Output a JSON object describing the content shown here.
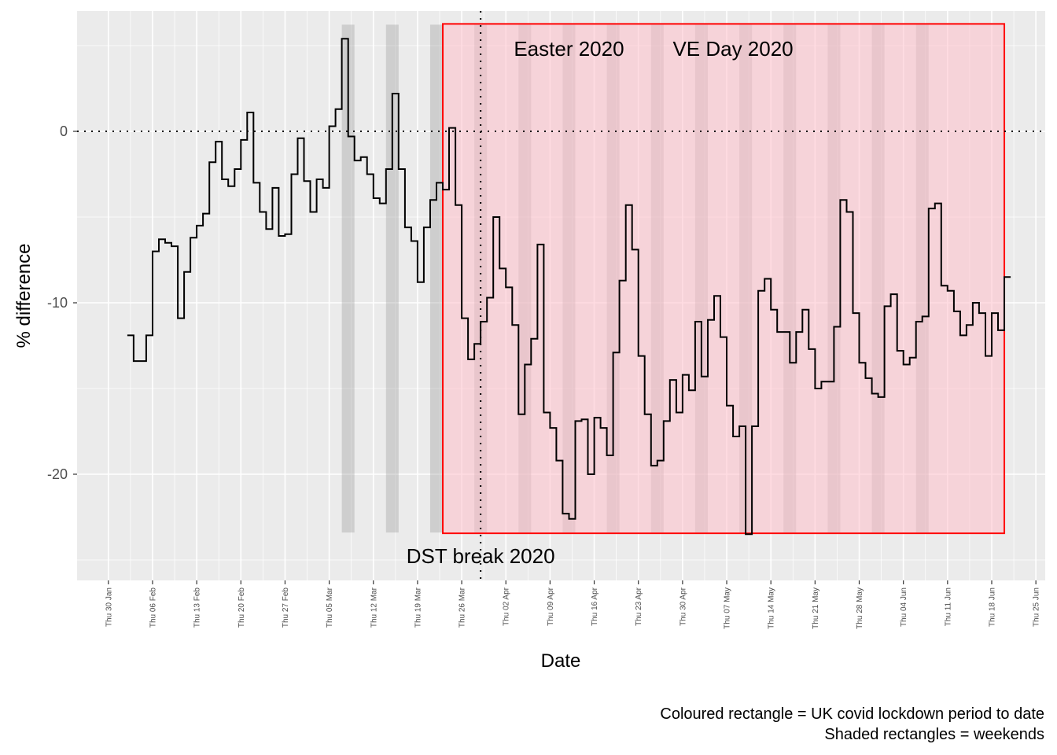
{
  "chart_data": {
    "type": "line",
    "step": true,
    "xlabel": "Date",
    "ylabel": "% difference",
    "ylim": [
      -26,
      7
    ],
    "x_tick_labels": [
      "Thu 30 Jan",
      "Thu 06 Feb",
      "Thu 13 Feb",
      "Thu 20 Feb",
      "Thu 27 Feb",
      "Thu 05 Mar",
      "Thu 12 Mar",
      "Thu 19 Mar",
      "Thu 26 Mar",
      "Thu 02 Apr",
      "Thu 09 Apr",
      "Thu 16 Apr",
      "Thu 23 Apr",
      "Thu 30 Apr",
      "Thu 07 May",
      "Thu 14 May",
      "Thu 21 May",
      "Thu 28 May",
      "Thu 04 Jun",
      "Thu 11 Jun",
      "Thu 18 Jun",
      "Thu 25 Jun"
    ],
    "y_ticks": [
      0,
      -10,
      -20
    ],
    "y_tick_labels": [
      "0",
      "-10",
      "-20"
    ],
    "first_date": "2020-02-02",
    "values": [
      -11.9,
      -13.4,
      -13.4,
      -11.9,
      -7.0,
      -6.3,
      -6.5,
      -6.7,
      -10.9,
      -8.2,
      -6.2,
      -5.5,
      -4.8,
      -1.8,
      -0.6,
      -2.8,
      -3.2,
      -2.2,
      -0.5,
      1.1,
      -3.0,
      -4.7,
      -5.7,
      -3.3,
      -6.1,
      -6.0,
      -2.5,
      -0.4,
      -2.9,
      -4.7,
      -2.8,
      -3.3,
      0.3,
      1.3,
      5.4,
      -0.3,
      -1.7,
      -1.5,
      -2.5,
      -3.9,
      -4.2,
      -2.2,
      2.2,
      -2.2,
      -5.6,
      -6.4,
      -8.8,
      -5.6,
      -4.0,
      -3.0,
      -3.4,
      0.2,
      -4.3,
      -10.9,
      -13.3,
      -12.4,
      -11.1,
      -9.7,
      -5.0,
      -8.0,
      -9.1,
      -11.3,
      -16.5,
      -13.6,
      -12.1,
      -6.6,
      -16.4,
      -17.3,
      -19.2,
      -22.3,
      -22.6,
      -16.9,
      -16.8,
      -20.0,
      -16.7,
      -17.3,
      -18.9,
      -12.9,
      -8.7,
      -4.3,
      -6.9,
      -13.1,
      -16.5,
      -19.5,
      -19.2,
      -16.9,
      -14.5,
      -16.4,
      -14.2,
      -15.1,
      -11.1,
      -14.3,
      -11.0,
      -9.6,
      -12.0,
      -16.0,
      -17.8,
      -17.2,
      -23.5,
      -17.2,
      -9.3,
      -8.6,
      -10.4,
      -11.7,
      -11.7,
      -13.5,
      -11.7,
      -10.4,
      -12.7,
      -15.0,
      -14.6,
      -14.6,
      -11.4,
      -4.0,
      -4.7,
      -10.6,
      -13.5,
      -14.4,
      -15.3,
      -15.5,
      -10.2,
      -9.5,
      -12.8,
      -13.6,
      -13.2,
      -11.1,
      -10.8,
      -4.5,
      -4.2,
      -9.0,
      -9.3,
      -10.5,
      -11.9,
      -11.3,
      -10.0,
      -10.6,
      -13.1,
      -10.6,
      -11.6,
      -8.5
    ],
    "weekends": [
      "2020-03-07",
      "2020-03-14",
      "2020-03-21",
      "2020-03-28",
      "2020-04-04",
      "2020-04-11",
      "2020-04-18",
      "2020-04-25",
      "2020-05-02",
      "2020-05-09",
      "2020-05-16",
      "2020-05-23",
      "2020-05-30",
      "2020-06-06"
    ],
    "lockdown_period": [
      "2020-03-23",
      "2020-06-18"
    ],
    "reference_y": 0,
    "events": [
      {
        "date": "2020-03-29",
        "label": "DST break 2020"
      },
      {
        "date": "2020-04-12",
        "label": "Easter 2020"
      },
      {
        "date": "2020-05-08",
        "label": "VE Day 2020"
      }
    ],
    "colors": {
      "panel": "#ebebeb",
      "grid": "#ffffff",
      "lockdown_fill": "#ffc0cb",
      "lockdown_border": "#ff0000",
      "weekend": "#999999",
      "line": "#000000"
    }
  },
  "caption": {
    "line1": "Coloured rectangle = UK covid lockdown period to date",
    "line2": "Shaded rectangles = weekends"
  }
}
